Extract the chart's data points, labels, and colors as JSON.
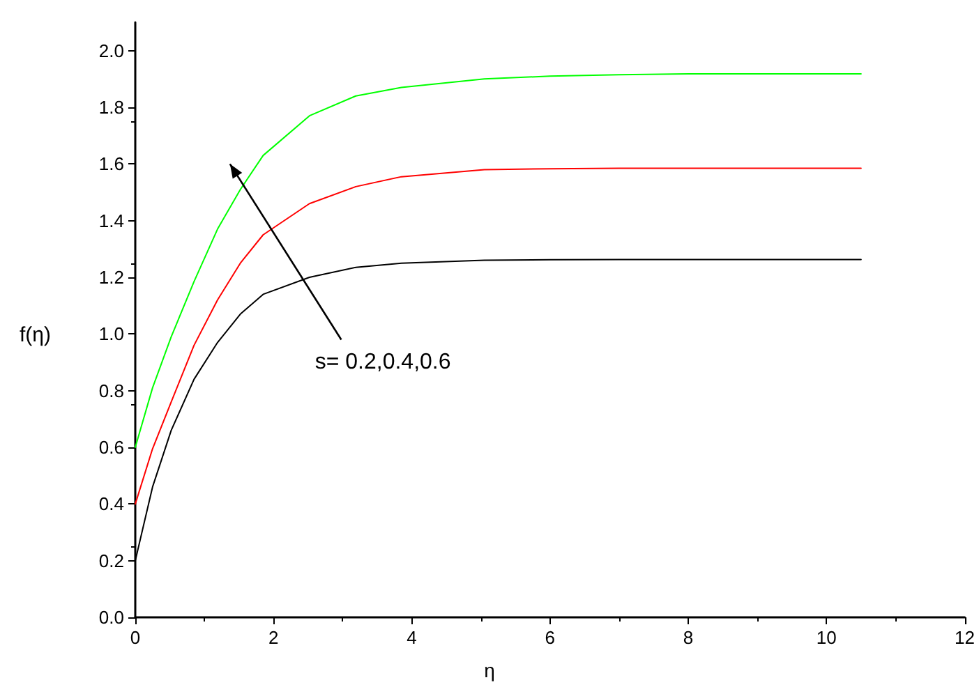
{
  "chart_data": {
    "type": "line",
    "xlabel": "η",
    "ylabel": "f(η)",
    "annotations": [
      "s= 0.2,0.4,0.6"
    ],
    "xlim": [
      0,
      12
    ],
    "xticks": [
      0,
      2,
      4,
      6,
      8,
      10,
      12
    ],
    "ylim": [
      0,
      2.1
    ],
    "yticks": [
      {
        "value": 0,
        "label": "0.0"
      },
      {
        "value": 0.2,
        "label": "0.2"
      },
      {
        "value": 0.4,
        "label": "0.4"
      },
      {
        "value": 0.6,
        "label": "0.6"
      },
      {
        "value": 0.8,
        "label": "0.8"
      },
      {
        "value": 1,
        "label": "1.0"
      },
      {
        "value": 1.2,
        "label": "1.2"
      },
      {
        "value": 1.4,
        "label": "1.4"
      },
      {
        "value": 1.6,
        "label": "1.6"
      },
      {
        "value": 1.8,
        "label": "1.8"
      },
      {
        "value": 2,
        "label": "2.0"
      }
    ],
    "grid": false,
    "marker": "none",
    "line_style": "solid",
    "x": [
      0,
      0.25,
      0.52,
      0.85,
      1.19,
      1.52,
      1.85,
      2.52,
      3.19,
      3.85,
      5.05,
      6,
      7,
      8,
      10.5
    ],
    "series": [
      {
        "color": "#000000",
        "values": [
          0.2,
          0.46,
          0.66,
          0.84,
          0.97,
          1.07,
          1.14,
          1.2,
          1.235,
          1.25,
          1.26,
          1.262,
          1.263,
          1.263,
          1.263
        ]
      },
      {
        "color": "#ff0000",
        "values": [
          0.4,
          0.595,
          0.76,
          0.96,
          1.12,
          1.25,
          1.35,
          1.46,
          1.52,
          1.555,
          1.58,
          1.583,
          1.585,
          1.585,
          1.585
        ]
      },
      {
        "color": "#00ff00",
        "values": [
          0.6,
          0.81,
          0.99,
          1.185,
          1.37,
          1.51,
          1.63,
          1.77,
          1.84,
          1.87,
          1.9,
          1.91,
          1.915,
          1.918,
          1.918
        ]
      }
    ]
  }
}
